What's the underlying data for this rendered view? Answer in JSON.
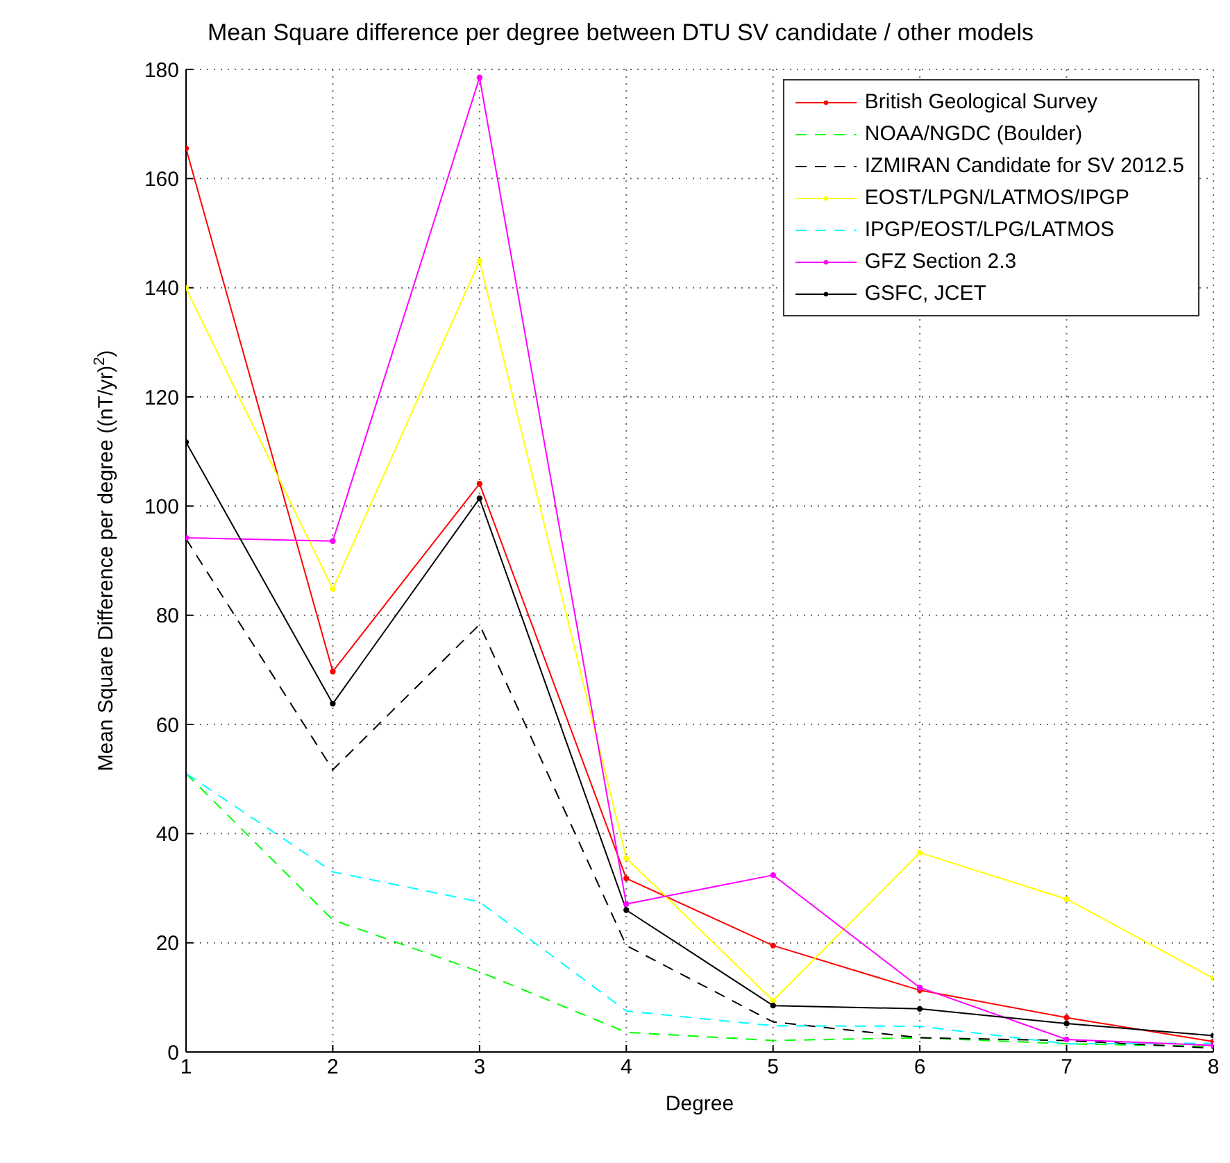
{
  "chart_data": {
    "type": "line",
    "title": "Mean Square difference per degree between DTU SV candidate / other models",
    "xlabel": "Degree",
    "ylabel": "Mean Square Difference per degree ((nT/yr)$^{2}$)",
    "x": [
      1,
      2,
      3,
      4,
      5,
      6,
      7,
      8
    ],
    "xlim": [
      1,
      8
    ],
    "xticks": [
      1,
      2,
      3,
      4,
      5,
      6,
      7,
      8
    ],
    "ylim": [
      0,
      180
    ],
    "yticks": [
      0,
      20,
      40,
      60,
      80,
      100,
      120,
      140,
      160,
      180
    ],
    "grid": true,
    "legend": "top right",
    "series": [
      {
        "name": "British Geological Survey",
        "color": "#ff0000",
        "marker": "circle",
        "line_style": "solid",
        "values": [
          165.5,
          69.7,
          104.1,
          31.8,
          19.5,
          11.3,
          6.3,
          1.9
        ]
      },
      {
        "name": "NOAA/NGDC (Boulder)",
        "color": "#00ff00",
        "marker": "none",
        "line_style": "dashed",
        "values": [
          51,
          24.2,
          14.7,
          3.6,
          2.1,
          2.6,
          1.5,
          1
        ]
      },
      {
        "name": "IZMIRAN Candidate for SV 2012.5",
        "color": "#000000",
        "marker": "none",
        "line_style": "dashed",
        "values": [
          94,
          51.7,
          78.3,
          19.5,
          5.5,
          2.6,
          2.1,
          0.7
        ]
      },
      {
        "name": "EOST/LPGN/LATMOS/IPGP",
        "color": "#ffff00",
        "marker": "circle",
        "line_style": "solid",
        "values": [
          139.9,
          84.8,
          144.9,
          35.5,
          9.4,
          36.5,
          28,
          13.5
        ]
      },
      {
        "name": "IPGP/EOST/LPG/LATMOS",
        "color": "#00ffff",
        "marker": "none",
        "line_style": "dashed",
        "values": [
          51,
          33,
          27.5,
          7.5,
          4.8,
          4.7,
          1.5,
          1.6
        ]
      },
      {
        "name": "GFZ Section 2.3",
        "color": "#ff00ff",
        "marker": "circle",
        "line_style": "solid",
        "values": [
          94.2,
          93.6,
          178.5,
          27.1,
          32.4,
          11.8,
          2.3,
          1.2
        ]
      },
      {
        "name": "GSFC, JCET",
        "color": "#000000",
        "marker": "circle",
        "line_style": "solid",
        "values": [
          111.7,
          63.8,
          101.4,
          26,
          8.5,
          7.9,
          5.2,
          3
        ]
      }
    ]
  }
}
